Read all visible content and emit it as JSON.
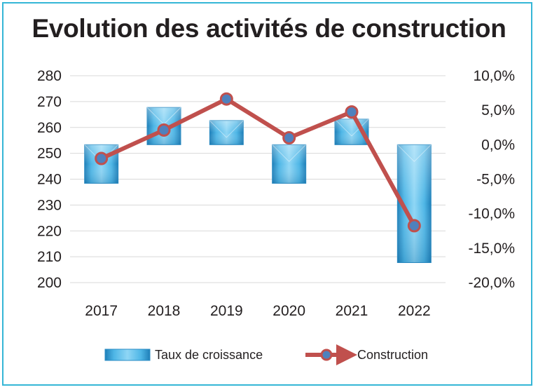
{
  "chart_data": {
    "type": "bar+line",
    "title": "Evolution des activités de construction",
    "categories": [
      "2017",
      "2018",
      "2019",
      "2020",
      "2021",
      "2022"
    ],
    "y_left": {
      "ticks": [
        "280",
        "270",
        "260",
        "250",
        "240",
        "230",
        "220",
        "210",
        "200"
      ],
      "range": [
        200,
        280
      ]
    },
    "y_right": {
      "ticks": [
        "10,0%",
        "5,0%",
        "0,0%",
        "-5,0%",
        "-10,0%",
        "-15,0%",
        "-20,0%"
      ],
      "range": [
        -20,
        10
      ]
    },
    "series": [
      {
        "name": "Taux de croissance",
        "kind": "bar",
        "axis": "right",
        "values": [
          -5.6,
          5.4,
          3.5,
          -5.6,
          3.7,
          -17.1
        ],
        "color": "#3fa9dc"
      },
      {
        "name": "Construction",
        "kind": "line",
        "axis": "left",
        "values": [
          248,
          259,
          271,
          256,
          266,
          222
        ],
        "color": "#c0504d",
        "marker_color": "#4f81bd"
      }
    ],
    "grid": true,
    "legend_position": "bottom"
  }
}
